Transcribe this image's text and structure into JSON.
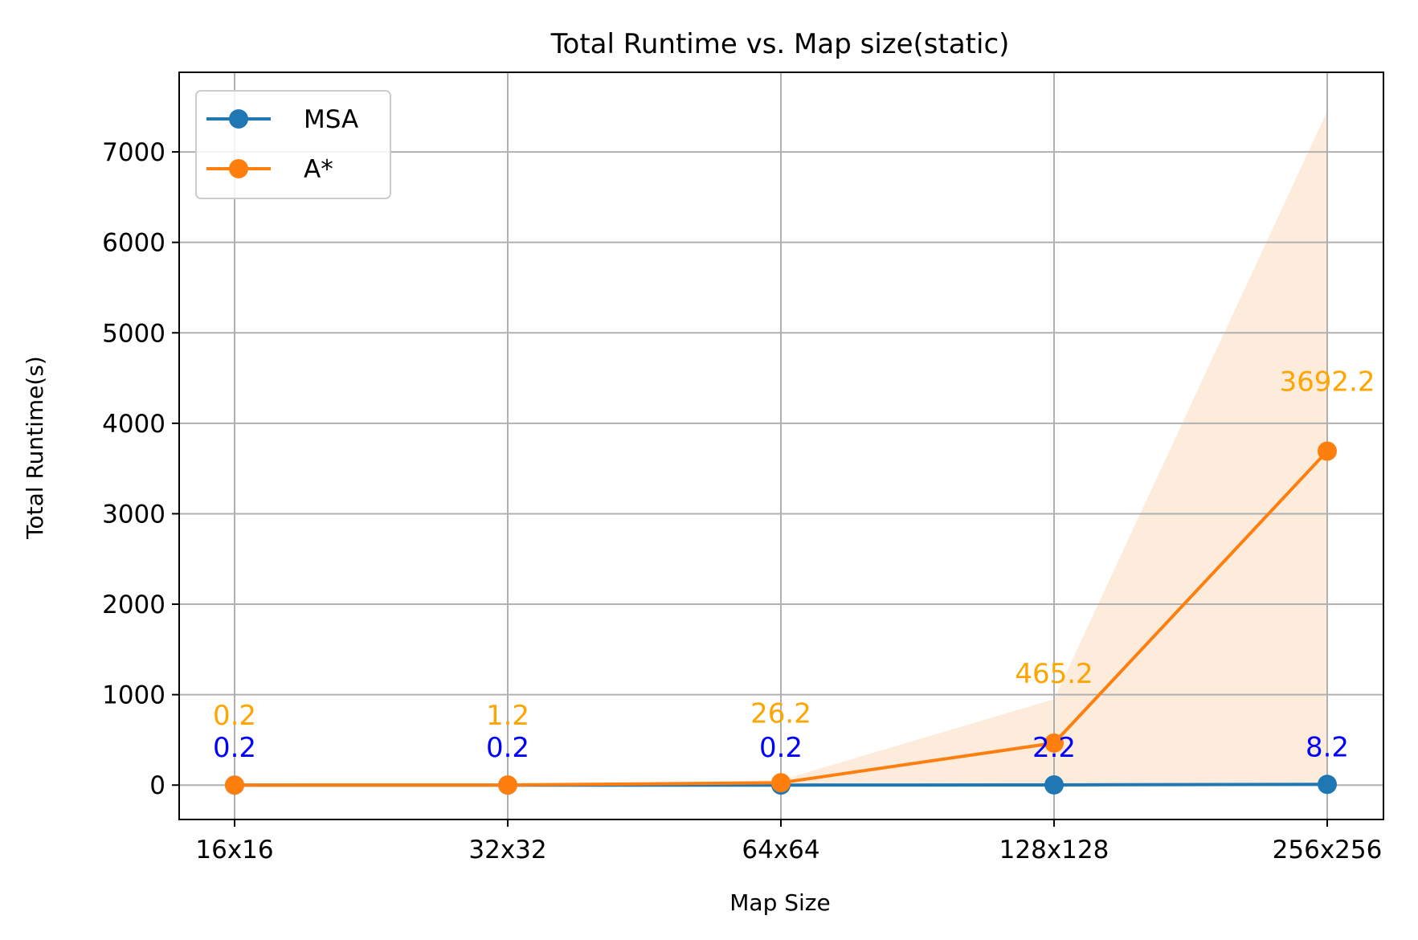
{
  "chart_data": {
    "type": "line",
    "title": "Total Runtime vs. Map size(static)",
    "xlabel": "Map Size",
    "ylabel": "Total Runtime(s)",
    "categories": [
      "16x16",
      "32x32",
      "64x64",
      "128x128",
      "256x256"
    ],
    "ylim": [
      -380,
      7880
    ],
    "yticks": [
      0,
      1000,
      2000,
      3000,
      4000,
      5000,
      6000,
      7000
    ],
    "grid": true,
    "legend_position": "top-left",
    "series": [
      {
        "name": "MSA",
        "color": "#1f77b4",
        "label_color": "#0000ff",
        "values": [
          0.2,
          0.2,
          0.2,
          2.2,
          8.2
        ],
        "labels": [
          "0.2",
          "0.2",
          "0.2",
          "2.2",
          "8.2"
        ]
      },
      {
        "name": "A*",
        "color": "#ff7f0e",
        "label_color": "#ffa500",
        "values": [
          0.2,
          1.2,
          26.2,
          465.2,
          3692.2
        ],
        "labels": [
          "0.2",
          "1.2",
          "26.2",
          "465.2",
          "3692.2"
        ],
        "band_lower": [
          0,
          0,
          0,
          0,
          0
        ],
        "band_upper": [
          0.4,
          2.5,
          55,
          950,
          7450
        ],
        "band_color": "#fdebdc"
      }
    ]
  }
}
